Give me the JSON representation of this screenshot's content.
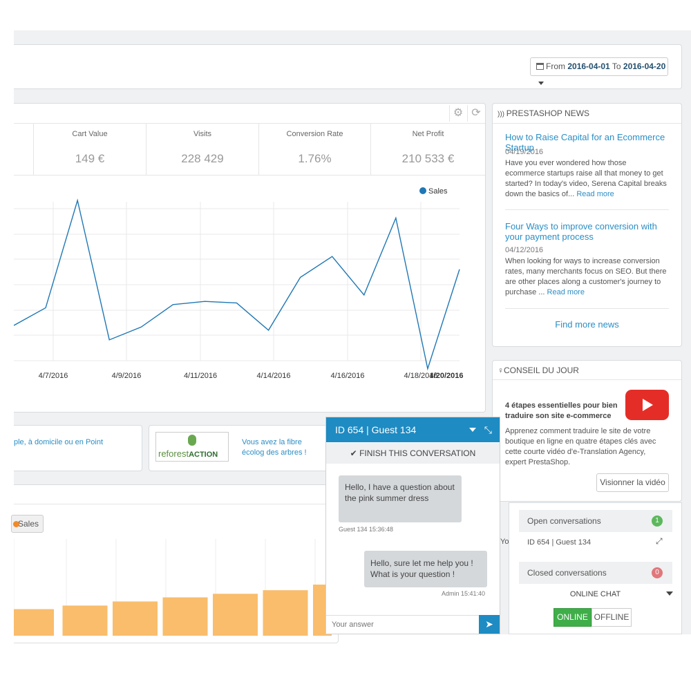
{
  "date_range": {
    "from_label": "From",
    "from": "2016-04-01",
    "to_label": "To",
    "to": "2016-04-20"
  },
  "kpis": [
    {
      "label": "Cart Value",
      "value": "149 €"
    },
    {
      "label": "Visits",
      "value": "228 429"
    },
    {
      "label": "Conversion Rate",
      "value": "1.76%"
    },
    {
      "label": "Net Profit",
      "value": "210 533 €"
    }
  ],
  "chart_data": {
    "type": "line",
    "legend": "Sales",
    "x_labels": [
      "4/7/2016",
      "4/9/2016",
      "4/11/2016",
      "4/14/2016",
      "4/16/2016",
      "4/18/2016",
      "4/20/2016"
    ],
    "series": [
      {
        "name": "Sales",
        "values": [
          0.22,
          0.33,
          1.0,
          0.13,
          0.21,
          0.35,
          0.37,
          0.36,
          0.19,
          0.52,
          0.65,
          0.41,
          0.89,
          -0.05,
          0.57
        ]
      }
    ],
    "grid": true,
    "color": "#1f77b4"
  },
  "news": {
    "title": "PRESTASHOP NEWS",
    "items": [
      {
        "title": "How to Raise Capital for an Ecommerce Startup",
        "date": "04/19/2016",
        "text": "Have you ever wondered how those ecommerce startups raise all that money to get started? In today's video, Serena Capital breaks down the basics of...",
        "more": "Read more"
      },
      {
        "title": "Four Ways to improve conversion with your payment process",
        "date": "04/12/2016",
        "text": "When looking for ways to increase conversion rates, many merchants focus on SEO. But there are other places along a customer's journey to purchase ...",
        "more": "Read more"
      }
    ],
    "find_more": "Find more news"
  },
  "tip": {
    "title": "CONSEIL DU JOUR",
    "headline": "4 étapes essentielles pour bien traduire son site e-commerce",
    "text": "Apprenez comment traduire le site de votre boutique en ligne en quatre étapes clés avec cette courte vidéo d'e-Translation Agency, expert PrestaShop.",
    "button": "Visionner la vidéo"
  },
  "promos": [
    {
      "text": "ple, à domicile ou en Point"
    },
    {
      "logo_a": "reforest",
      "logo_b": "ACTION",
      "text": "Vous avez la fibre écolog des arbres !"
    }
  ],
  "bar_chart": {
    "legend": "Sales",
    "color": "#f9bd6b",
    "values": [
      0.52,
      0.59,
      0.67,
      0.75,
      0.82,
      0.89,
      1.0
    ]
  },
  "chat": {
    "header": "ID 654 | Guest 134",
    "finish": "FINISH THIS CONVERSATION",
    "messages": [
      {
        "text": "Hello, I have a question about the pink summer dress",
        "meta": "Guest 134 15:36:48"
      },
      {
        "text": "Hello, sure let me help you ! What is your question !",
        "meta": "Admin 15:41:40"
      }
    ],
    "input_placeholder": "Your answer"
  },
  "conversations": {
    "open_label": "Open conversations",
    "open_count": "1",
    "open_item": "ID 654 | Guest 134",
    "closed_label": "Closed conversations",
    "closed_count": "0",
    "online_chat": "ONLINE CHAT",
    "online": "ONLINE",
    "offline": "OFFLINE"
  },
  "colors": {
    "accent": "#1e8bc3",
    "link": "#2a8ec5",
    "bar": "#f9bd6b",
    "online": "#3fae49",
    "badge_green": "#5cb85c",
    "badge_red": "#e0777c"
  }
}
